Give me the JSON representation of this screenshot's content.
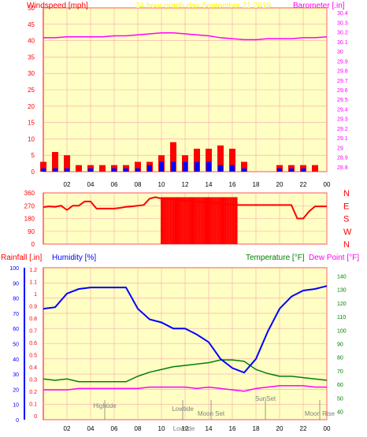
{
  "colors": {
    "background": "#ffffff",
    "plot_bg": "#ffffc4",
    "grid": "#f3a8a8",
    "axis": "#ff0000",
    "dark_axis": "#808080",
    "windspeed": "#ff0000",
    "windgust_blue": "#0000ff",
    "wind_green": "#008000",
    "barometer": "#ff00ff",
    "humidity": "#0000ff",
    "temperature": "#008000",
    "dewpoint": "#ff00ff",
    "rain_label": "#ff0000",
    "markers": "#808080",
    "title": "#ffff00"
  },
  "chart_data": [
    {
      "type": "bar",
      "title": "24 hour graph day   September 21 2019",
      "left_label": "Windspeed [mph]",
      "right_label": "Barometer [.in]",
      "x_ticks": [
        "02",
        "04",
        "06",
        "08",
        "10",
        "12",
        "14",
        "16",
        "18",
        "20",
        "22",
        "00"
      ],
      "left_ticks": [
        "0",
        "5",
        "10",
        "15",
        "20",
        "25",
        "30",
        "35",
        "40",
        "45",
        "50"
      ],
      "right_ticks": [
        "28.8",
        "28.9",
        "29",
        "29.1",
        "29.2",
        "29.3",
        "29.4",
        "29.5",
        "29.6",
        "29.7",
        "29.8",
        "29.9",
        "30",
        "30.1",
        "30.2",
        "30.3",
        "30.4"
      ],
      "ylim_left": [
        0,
        50
      ],
      "ylim_right": [
        28.75,
        30.45
      ],
      "grid": true,
      "series": [
        {
          "name": "Barometer",
          "axis": "right",
          "x": [
            0,
            1,
            2,
            3,
            4,
            5,
            6,
            7,
            8,
            9,
            10,
            11,
            12,
            13,
            14,
            15,
            16,
            17,
            18,
            19,
            20,
            21,
            22,
            23,
            24
          ],
          "values": [
            30.14,
            30.14,
            30.15,
            30.15,
            30.15,
            30.15,
            30.16,
            30.16,
            30.17,
            30.18,
            30.19,
            30.19,
            30.18,
            30.17,
            30.16,
            30.14,
            30.13,
            30.12,
            30.12,
            30.13,
            30.13,
            30.13,
            30.14,
            30.14,
            30.15
          ]
        },
        {
          "name": "Wind speed",
          "axis": "left",
          "x": [
            0,
            1,
            2,
            3,
            4,
            5,
            6,
            7,
            8,
            9,
            10,
            11,
            12,
            13,
            14,
            15,
            16,
            17,
            18,
            19,
            20,
            21,
            22,
            23,
            24
          ],
          "values": [
            1,
            1,
            1,
            0,
            1,
            0,
            1,
            1,
            1,
            2,
            3,
            3,
            3,
            3,
            3,
            2,
            2,
            1,
            0,
            0,
            1,
            1,
            1,
            0,
            0
          ]
        },
        {
          "name": "Wind gust",
          "axis": "left",
          "x": [
            0,
            1,
            2,
            3,
            4,
            5,
            6,
            7,
            8,
            9,
            10,
            11,
            12,
            13,
            14,
            15,
            16,
            17,
            18,
            19,
            20,
            21,
            22,
            23,
            24
          ],
          "values": [
            3,
            6,
            5,
            2,
            2,
            2,
            2,
            2,
            3,
            3,
            5,
            9,
            5,
            7,
            7,
            8,
            7,
            3,
            0,
            0,
            2,
            2,
            2,
            2,
            0
          ]
        }
      ]
    },
    {
      "type": "line",
      "left_ticks": [
        "0",
        "90",
        "180",
        "270",
        "360"
      ],
      "right_labels": [
        "N",
        "W",
        "S",
        "E",
        "N"
      ],
      "ylim": [
        0,
        360
      ],
      "series": [
        {
          "name": "Wind direction",
          "x": [
            0,
            0.5,
            1,
            1.5,
            2,
            2.5,
            3,
            3.5,
            4,
            4.5,
            5,
            5.5,
            6,
            6.5,
            7,
            7.5,
            8,
            8.5,
            9,
            9.5,
            10,
            16.5,
            17,
            17.5,
            18,
            18.5,
            19,
            19.5,
            20,
            20.5,
            21,
            21.5,
            22,
            22.5,
            23,
            23.5,
            24
          ],
          "values": [
            260,
            265,
            262,
            270,
            240,
            270,
            270,
            300,
            300,
            250,
            250,
            250,
            250,
            255,
            262,
            265,
            270,
            275,
            320,
            330,
            320,
            275,
            275,
            275,
            275,
            275,
            275,
            275,
            275,
            275,
            275,
            180,
            180,
            230,
            265,
            265,
            265
          ]
        }
      ]
    },
    {
      "type": "line",
      "rain_label": "Rainfall [.in]",
      "humidity_label": "Humidity [%]",
      "temperature_label": "Temperature [°F]",
      "dewpoint_label": "Dew Point [°F]",
      "x_ticks": [
        "02",
        "04",
        "06",
        "08",
        "10",
        "12",
        "14",
        "16",
        "18",
        "20",
        "22",
        "00"
      ],
      "humidity_ticks": [
        "0",
        "10",
        "20",
        "30",
        "40",
        "50",
        "60",
        "70",
        "80",
        "90",
        "100"
      ],
      "rain_ticks": [
        "0",
        "0.1",
        "0.2",
        "0.3",
        "0.4",
        "0.5",
        "0.6",
        "0.7",
        "0.8",
        "0.9",
        "1",
        "1.1",
        "1.2"
      ],
      "temp_ticks": [
        "40",
        "50",
        "60",
        "70",
        "80",
        "90",
        "100",
        "110",
        "120",
        "130",
        "140"
      ],
      "ylim_humidity": [
        0,
        100
      ],
      "ylim_temp": [
        34,
        146
      ],
      "grid": true,
      "series": [
        {
          "name": "Humidity",
          "axis": "humidity",
          "x": [
            0,
            1,
            2,
            3,
            4,
            5,
            6,
            7,
            8,
            9,
            10,
            11,
            12,
            13,
            14,
            15,
            16,
            17,
            18,
            19,
            20,
            21,
            22,
            23,
            24
          ],
          "values": [
            73,
            74,
            83,
            86,
            87,
            87,
            87,
            87,
            73,
            66,
            64,
            60,
            60,
            56,
            51,
            40,
            34,
            31,
            40,
            58,
            73,
            81,
            85,
            86,
            88
          ]
        },
        {
          "name": "Temperature",
          "axis": "temp",
          "x": [
            0,
            1,
            2,
            3,
            4,
            5,
            6,
            7,
            8,
            9,
            10,
            11,
            12,
            13,
            14,
            15,
            16,
            17,
            18,
            19,
            20,
            21,
            22,
            23,
            24
          ],
          "values": [
            64,
            63,
            64,
            62,
            62,
            62,
            62,
            62,
            66,
            69,
            71,
            73,
            74,
            75,
            76,
            78,
            78,
            77,
            71,
            68,
            66,
            66,
            65,
            64,
            63
          ]
        },
        {
          "name": "Dew Point",
          "axis": "temp",
          "x": [
            0,
            1,
            2,
            3,
            4,
            5,
            6,
            7,
            8,
            9,
            10,
            11,
            12,
            13,
            14,
            15,
            16,
            17,
            18,
            19,
            20,
            21,
            22,
            23,
            24
          ],
          "values": [
            56,
            56,
            56,
            57,
            57,
            57,
            57,
            57,
            57,
            58,
            58,
            58,
            58,
            57,
            58,
            57,
            56,
            55,
            57,
            58,
            59,
            59,
            59,
            58,
            58
          ]
        }
      ],
      "markers": [
        {
          "label": "Hightide",
          "x": 5.2
        },
        {
          "label": "Lowtide",
          "x": 11.8
        },
        {
          "label": "Lowtide",
          "x": 11.9,
          "row": "bottom"
        },
        {
          "label": "Moon Set",
          "x": 14.2
        },
        {
          "label": "SunSet",
          "x": 18.8
        },
        {
          "label": "Moon Rise",
          "x": 23.4
        }
      ]
    }
  ]
}
